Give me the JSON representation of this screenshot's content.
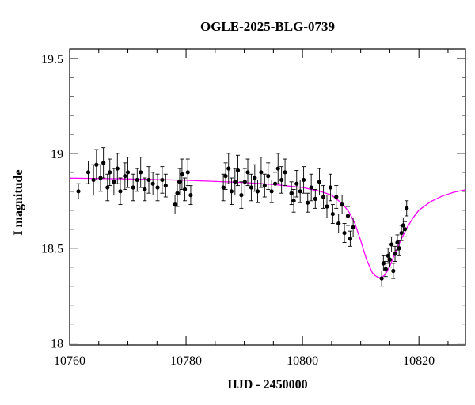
{
  "chart_data": {
    "type": "scatter",
    "title": "OGLE-2025-BLG-0739",
    "xlabel": "HJD - 2450000",
    "ylabel": "I magnitude",
    "xlim": [
      10760,
      10828
    ],
    "ylim": [
      19.55,
      17.99
    ],
    "y_inverted": true,
    "grid": false,
    "legend": "none",
    "xticks": {
      "values": [
        10760,
        10780,
        10800,
        10820
      ],
      "labels": [
        "10760",
        "10780",
        "10800",
        "10820"
      ],
      "minor_step": 5
    },
    "yticks": {
      "values": [
        18,
        18.5,
        19,
        19.5
      ],
      "labels": [
        "18",
        "18.5",
        "19",
        "19.5"
      ],
      "minor_step": 0.1
    },
    "colors": {
      "points": "#000000",
      "model": "#ff00ff",
      "frame": "#000000"
    },
    "series": [
      {
        "kind": "points_with_errorbars",
        "x": [
          10761.5,
          10763.2,
          10764.1,
          10764.6,
          10765.3,
          10765.8,
          10766.5,
          10766.9,
          10767.6,
          10768.2,
          10768.7,
          10769.5,
          10770.0,
          10770.9,
          10771.6,
          10772.2,
          10772.9,
          10773.6,
          10774.3,
          10775.1,
          10775.9,
          10776.5,
          10778.1,
          10778.5,
          10778.9,
          10779.3,
          10779.8,
          10780.3,
          10780.8,
          10786.4,
          10786.8,
          10787.3,
          10787.8,
          10788.4,
          10788.9,
          10789.5,
          10790.1,
          10790.6,
          10791.2,
          10791.8,
          10792.3,
          10792.9,
          10793.5,
          10794.1,
          10794.7,
          10795.3,
          10795.8,
          10796.4,
          10797.0,
          10798.1,
          10798.5,
          10799.0,
          10799.6,
          10800.2,
          10800.9,
          10801.5,
          10802.2,
          10802.9,
          10803.6,
          10804.2,
          10804.8,
          10805.2,
          10805.8,
          10806.2,
          10806.8,
          10807.2,
          10807.8,
          10808.2,
          10808.7,
          10813.6,
          10813.9,
          10814.3,
          10814.7,
          10815.0,
          10815.3,
          10815.6,
          10815.9,
          10816.3,
          10816.6,
          10817.0,
          10817.3,
          10817.6,
          10817.9
        ],
        "y": [
          18.8,
          18.9,
          18.86,
          18.94,
          18.87,
          18.95,
          18.82,
          18.9,
          18.85,
          18.92,
          18.8,
          18.88,
          18.9,
          18.82,
          18.86,
          18.9,
          18.81,
          18.86,
          18.84,
          18.82,
          18.86,
          18.83,
          18.73,
          18.79,
          18.85,
          18.89,
          18.81,
          18.9,
          18.78,
          18.82,
          18.88,
          18.92,
          18.8,
          18.85,
          18.91,
          18.78,
          18.85,
          18.9,
          18.82,
          18.87,
          18.8,
          18.9,
          18.83,
          18.88,
          18.8,
          18.84,
          18.92,
          18.86,
          18.9,
          18.79,
          18.75,
          18.84,
          18.8,
          18.86,
          18.74,
          18.82,
          18.76,
          18.85,
          18.77,
          18.72,
          18.82,
          18.68,
          18.77,
          18.63,
          18.73,
          18.58,
          18.67,
          18.55,
          18.61,
          18.34,
          18.42,
          18.39,
          18.46,
          18.44,
          18.52,
          18.38,
          18.47,
          18.53,
          18.5,
          18.58,
          18.62,
          18.6,
          18.71
        ],
        "err": [
          0.04,
          0.06,
          0.08,
          0.08,
          0.07,
          0.08,
          0.07,
          0.07,
          0.07,
          0.08,
          0.07,
          0.07,
          0.08,
          0.07,
          0.06,
          0.08,
          0.06,
          0.07,
          0.06,
          0.07,
          0.07,
          0.06,
          0.05,
          0.07,
          0.07,
          0.08,
          0.06,
          0.07,
          0.05,
          0.07,
          0.07,
          0.08,
          0.07,
          0.07,
          0.08,
          0.07,
          0.07,
          0.07,
          0.07,
          0.07,
          0.06,
          0.08,
          0.06,
          0.07,
          0.06,
          0.06,
          0.08,
          0.07,
          0.07,
          0.06,
          0.06,
          0.07,
          0.06,
          0.07,
          0.05,
          0.07,
          0.05,
          0.07,
          0.06,
          0.06,
          0.07,
          0.05,
          0.06,
          0.05,
          0.05,
          0.05,
          0.05,
          0.04,
          0.05,
          0.04,
          0.04,
          0.04,
          0.04,
          0.04,
          0.04,
          0.04,
          0.04,
          0.04,
          0.04,
          0.04,
          0.04,
          0.04,
          0.04
        ]
      },
      {
        "kind": "model_curve",
        "x": [
          10760,
          10770,
          10780,
          10790,
          10795,
          10800,
          10803,
          10805,
          10807,
          10808,
          10809,
          10810,
          10811,
          10812,
          10812.5,
          10813,
          10813.5,
          10814,
          10814.5,
          10815,
          10816,
          10817,
          10818,
          10819,
          10820,
          10822,
          10824,
          10826,
          10828
        ],
        "y": [
          18.869,
          18.865,
          18.858,
          18.846,
          18.836,
          18.82,
          18.8,
          18.78,
          18.73,
          18.69,
          18.63,
          18.54,
          18.44,
          18.37,
          18.355,
          18.345,
          18.345,
          18.355,
          18.375,
          18.405,
          18.48,
          18.55,
          18.61,
          18.66,
          18.7,
          18.745,
          18.775,
          18.795,
          18.808
        ]
      }
    ]
  }
}
